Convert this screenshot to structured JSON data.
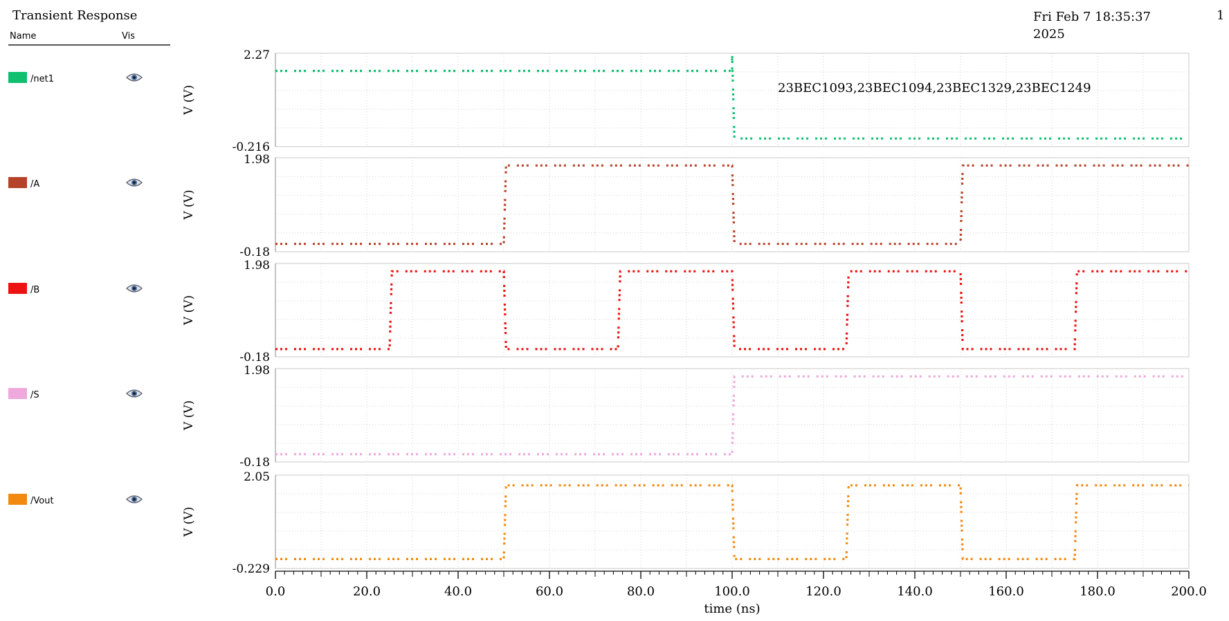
{
  "header": {
    "title": "Transient Response",
    "date": "Fri Feb 7 18:35:37 2025",
    "page": "1",
    "col_name": "Name",
    "col_vis": "Vis"
  },
  "legend": [
    {
      "name": "/net1",
      "color": "#10c070",
      "icon": "eye-icon"
    },
    {
      "name": "/A",
      "color": "#b5432a",
      "icon": "eye-icon"
    },
    {
      "name": "/B",
      "color": "#ee1111",
      "icon": "eye-icon"
    },
    {
      "name": "/S",
      "color": "#eea8dc",
      "icon": "eye-icon"
    },
    {
      "name": "/Vout",
      "color": "#f28a10",
      "icon": "eye-icon"
    }
  ],
  "chart_data": {
    "type": "line",
    "xlabel": "time (ns)",
    "xlim": [
      0,
      200
    ],
    "xticks": [
      "0.0",
      "20.0",
      "40.0",
      "60.0",
      "80.0",
      "100.0",
      "120.0",
      "140.0",
      "160.0",
      "180.0",
      "200.0"
    ],
    "grid": true,
    "annotation": "23BEC1093,23BEC1094,23BEC1329,23BEC1249",
    "series": [
      {
        "name": "/net1",
        "color": "#10c070",
        "ylabel": "V (V)",
        "ylim_labels": [
          "2.27",
          "-0.216"
        ],
        "ylim": [
          -0.216,
          2.27
        ],
        "x": [
          0,
          100,
          100,
          100.5,
          200
        ],
        "y": [
          1.8,
          1.8,
          2.2,
          0.0,
          0.0
        ]
      },
      {
        "name": "/A",
        "color": "#b5432a",
        "ylabel": "V (V)",
        "ylim_labels": [
          "1.98",
          "-0.18"
        ],
        "ylim": [
          -0.18,
          1.98
        ],
        "x": [
          0,
          50,
          50.5,
          100,
          100.5,
          150,
          150.5,
          200
        ],
        "y": [
          0,
          0,
          1.8,
          1.8,
          0,
          0,
          1.8,
          1.8
        ]
      },
      {
        "name": "/B",
        "color": "#ee1111",
        "ylabel": "V (V)",
        "ylim_labels": [
          "1.98",
          "-0.18"
        ],
        "ylim": [
          -0.18,
          1.98
        ],
        "x": [
          0,
          25,
          25.5,
          50,
          50.5,
          75,
          75.5,
          100,
          100.5,
          125,
          125.5,
          150,
          150.5,
          175,
          175.5,
          200
        ],
        "y": [
          0,
          0,
          1.8,
          1.8,
          0,
          0,
          1.8,
          1.8,
          0,
          0,
          1.8,
          1.8,
          0,
          0,
          1.8,
          1.8
        ]
      },
      {
        "name": "/S",
        "color": "#eea8dc",
        "ylabel": "V (V)",
        "ylim_labels": [
          "1.98",
          "-0.18"
        ],
        "ylim": [
          -0.18,
          1.98
        ],
        "x": [
          0,
          100,
          100.5,
          200
        ],
        "y": [
          0,
          0,
          1.8,
          1.8
        ]
      },
      {
        "name": "/Vout",
        "color": "#f28a10",
        "ylabel": "V (V)",
        "ylim_labels": [
          "2.05",
          "-0.229"
        ],
        "ylim": [
          -0.229,
          2.05
        ],
        "x": [
          0,
          50,
          50.5,
          100,
          100.5,
          125,
          125.5,
          150,
          150.5,
          175,
          175.5,
          200
        ],
        "y": [
          0,
          0,
          1.8,
          1.8,
          0,
          0,
          1.8,
          1.8,
          0,
          0,
          1.8,
          1.8
        ]
      }
    ]
  }
}
